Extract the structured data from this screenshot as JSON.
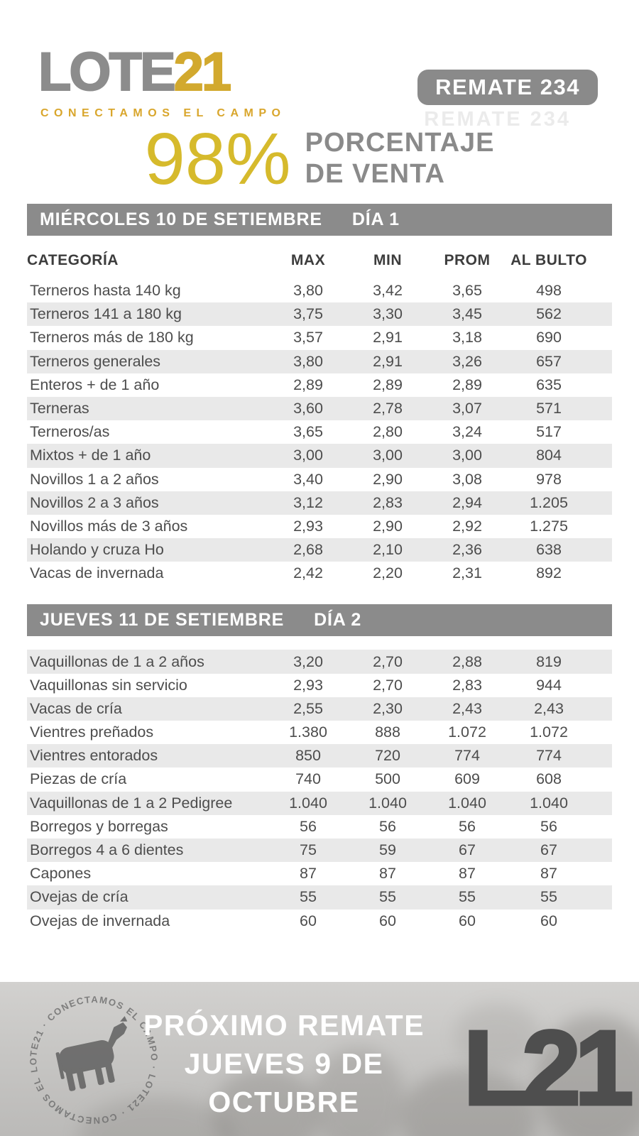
{
  "brand": {
    "logo_lote": "LOTE",
    "logo_21": "21",
    "tagline": "CONECTAMOS EL CAMPO",
    "badge": "REMATE 234",
    "badge_ghost": "REMATE 234"
  },
  "headline": {
    "percent": "98%",
    "label_line1": "PORCENTAJE",
    "label_line2": "DE VENTA"
  },
  "colors": {
    "gold": "#d6ba2c",
    "logo_gold": "#d2a92e",
    "bar_gray": "#8b8b8b",
    "row_shade": "#e9e9e9",
    "text_gray": "#4d4d4d",
    "footer_bg": "#c8c7c5",
    "footer_mark": "#4e4e4e"
  },
  "tables": [
    {
      "title": "MIÉRCOLES 10 DE SETIEMBRE",
      "day": "DÍA 1",
      "columns": [
        "CATEGORÍA",
        "MAX",
        "MIN",
        "PROM",
        "AL BULTO"
      ],
      "first_row_shaded": false,
      "rows": [
        [
          "Terneros hasta 140 kg",
          "3,80",
          "3,42",
          "3,65",
          "498"
        ],
        [
          "Terneros 141 a 180 kg",
          "3,75",
          "3,30",
          "3,45",
          "562"
        ],
        [
          "Terneros más de 180 kg",
          "3,57",
          "2,91",
          "3,18",
          "690"
        ],
        [
          "Terneros generales",
          "3,80",
          "2,91",
          "3,26",
          "657"
        ],
        [
          "Enteros + de 1 año",
          "2,89",
          "2,89",
          "2,89",
          "635"
        ],
        [
          "Terneras",
          "3,60",
          "2,78",
          "3,07",
          "571"
        ],
        [
          "Terneros/as",
          "3,65",
          "2,80",
          "3,24",
          "517"
        ],
        [
          "Mixtos + de 1 año",
          "3,00",
          "3,00",
          "3,00",
          "804"
        ],
        [
          "Novillos 1 a 2 años",
          "3,40",
          "2,90",
          "3,08",
          "978"
        ],
        [
          "Novillos 2 a 3 años",
          "3,12",
          "2,83",
          "2,94",
          "1.205"
        ],
        [
          "Novillos más de 3 años",
          "2,93",
          "2,90",
          "2,92",
          "1.275"
        ],
        [
          "Holando y cruza Ho",
          "2,68",
          "2,10",
          "2,36",
          "638"
        ],
        [
          "Vacas de invernada",
          "2,42",
          "2,20",
          "2,31",
          "892"
        ]
      ]
    },
    {
      "title": "JUEVES 11 DE SETIEMBRE",
      "day": "DÍA 2",
      "first_row_shaded": true,
      "rows": [
        [
          "Vaquillonas de 1 a 2 años",
          "3,20",
          "2,70",
          "2,88",
          "819"
        ],
        [
          "Vaquillonas sin servicio",
          "2,93",
          "2,70",
          "2,83",
          "944"
        ],
        [
          "Vacas de cría",
          "2,55",
          "2,30",
          "2,43",
          "2,43"
        ],
        [
          "Vientres preñados",
          "1.380",
          "888",
          "1.072",
          "1.072"
        ],
        [
          "Vientres entorados",
          "850",
          "720",
          "774",
          "774"
        ],
        [
          "Piezas de cría",
          "740",
          "500",
          "609",
          "608"
        ],
        [
          "Vaquillonas de 1 a 2  Pedigree",
          "1.040",
          "1.040",
          "1.040",
          "1.040"
        ],
        [
          "Borregos y borregas",
          "56",
          "56",
          "56",
          "56"
        ],
        [
          "Borregos 4 a 6 dientes",
          "75",
          "59",
          "67",
          "67"
        ],
        [
          "Capones",
          "87",
          "87",
          "87",
          "87"
        ],
        [
          "Ovejas de cría",
          "55",
          "55",
          "55",
          "55"
        ],
        [
          "Ovejas de invernada",
          "60",
          "60",
          "60",
          "60"
        ]
      ]
    }
  ],
  "footer": {
    "stamp_text": "LOTE21 · CONECTAMOS EL CAMPO · LOTE21 · CONECTAMOS EL CAMPO ·",
    "next_line1": "PRÓXIMO REMATE",
    "next_line2": "JUEVES 9 DE",
    "next_line3": "OCTUBRE",
    "logo_mark": "L21"
  }
}
